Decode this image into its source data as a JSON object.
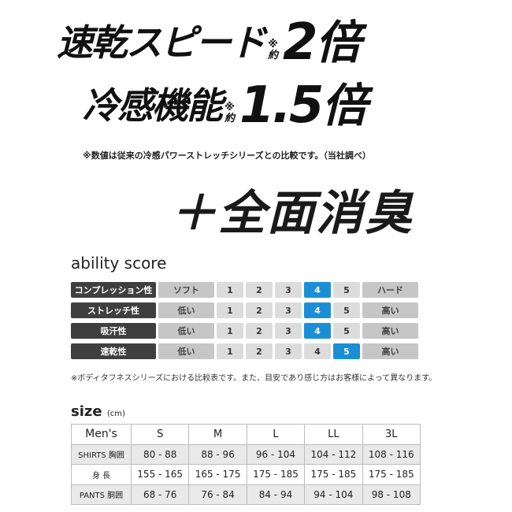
{
  "headline": {
    "line1": {
      "text": "速乾スピード",
      "note_mark": "※",
      "note_word": "約",
      "number": "2",
      "unit": "倍"
    },
    "line2": {
      "text": "冷感機能",
      "note_mark": "※",
      "note_word": "約",
      "number": "1.5",
      "unit": "倍"
    },
    "footnote": "※数値は従来の冷感パワーストレッチシリーズとの比較です。（当社調べ）",
    "line3": "＋全面消臭"
  },
  "ability": {
    "title": "ability score",
    "accent_color": "#1b8fd6",
    "rows": [
      {
        "label": "コンプレッション性",
        "low": "ソフト",
        "high": "ハード",
        "score": 4
      },
      {
        "label": "ストレッチ性",
        "low": "低い",
        "high": "高い",
        "score": 4
      },
      {
        "label": "吸汗性",
        "low": "低い",
        "high": "高い",
        "score": 4
      },
      {
        "label": "速乾性",
        "low": "低い",
        "high": "高い",
        "score": 5
      }
    ],
    "scale": [
      "1",
      "2",
      "3",
      "4",
      "5"
    ],
    "note": "※ボディタフネスシリーズにおける比較表です。また、目安であり感じ方はお客様によって異なります。"
  },
  "size": {
    "title": "size",
    "unit": "(cm)",
    "header": [
      "Men's",
      "S",
      "M",
      "L",
      "LL",
      "3L"
    ],
    "rows": [
      [
        "SHIRTS 胸囲",
        "80 - 88",
        "88 - 96",
        "96 - 104",
        "104 - 112",
        "108 - 116"
      ],
      [
        "身 長",
        "155 - 165",
        "165 - 175",
        "175 - 185",
        "175 - 185",
        "175 - 185"
      ],
      [
        "PANTS 胴囲",
        "68 - 76",
        "76 - 84",
        "84 - 94",
        "94 - 104",
        "98 - 108"
      ]
    ]
  }
}
